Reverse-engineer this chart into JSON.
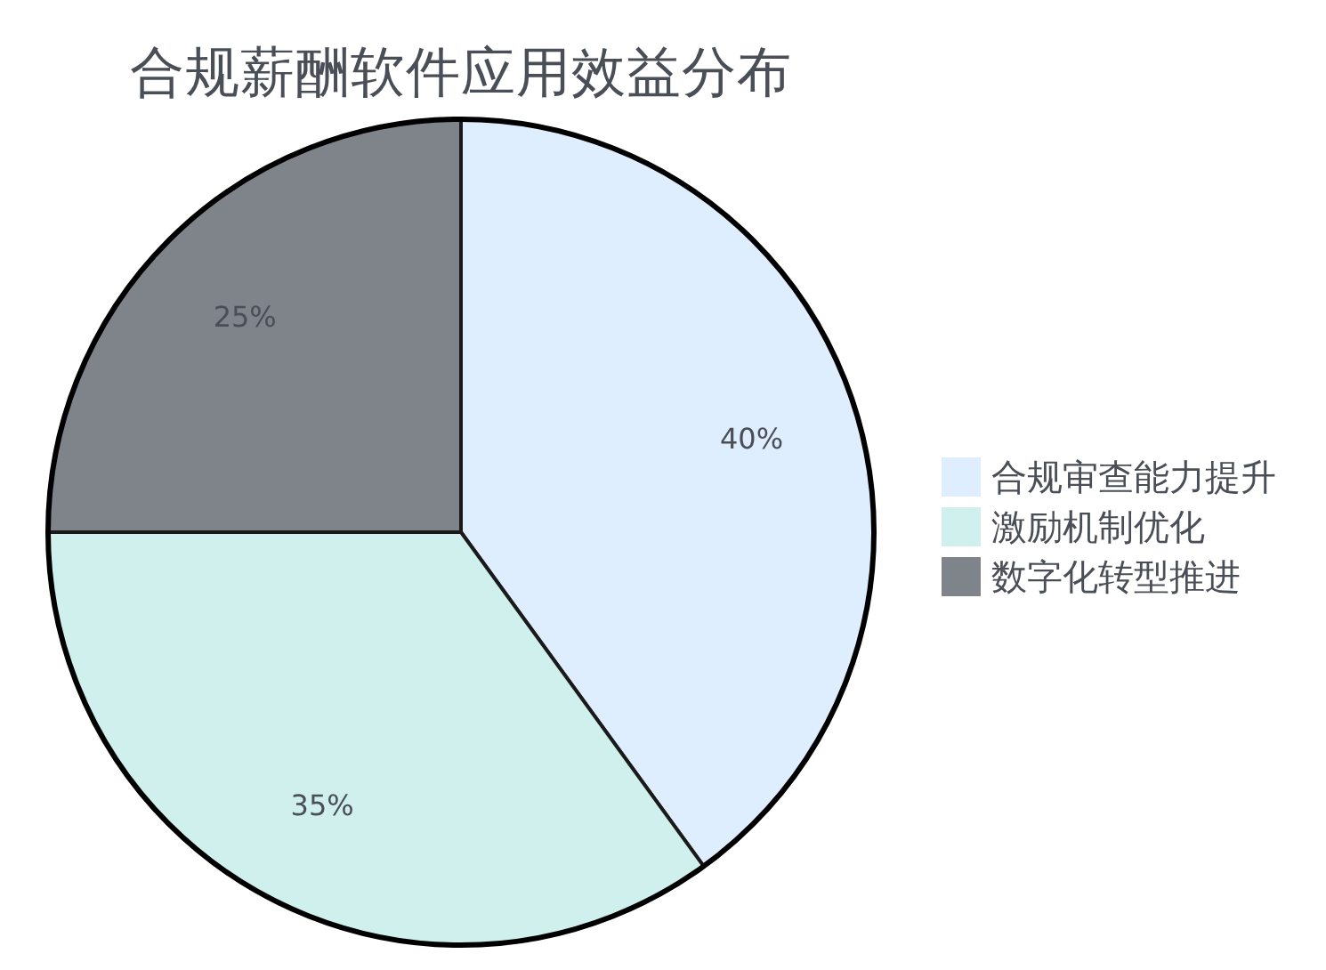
{
  "chart_data": {
    "type": "pie",
    "title": "合规薪酬软件应用效益分布",
    "categories": [
      "合规审查能力提升",
      "激励机制优化",
      "数字化转型推进"
    ],
    "values": [
      40,
      35,
      25
    ],
    "colors": [
      "#dfeeff",
      "#cff0ec",
      "#7f848b"
    ],
    "value_labels": [
      "40%",
      "35%",
      "25%"
    ],
    "legend": "right"
  }
}
